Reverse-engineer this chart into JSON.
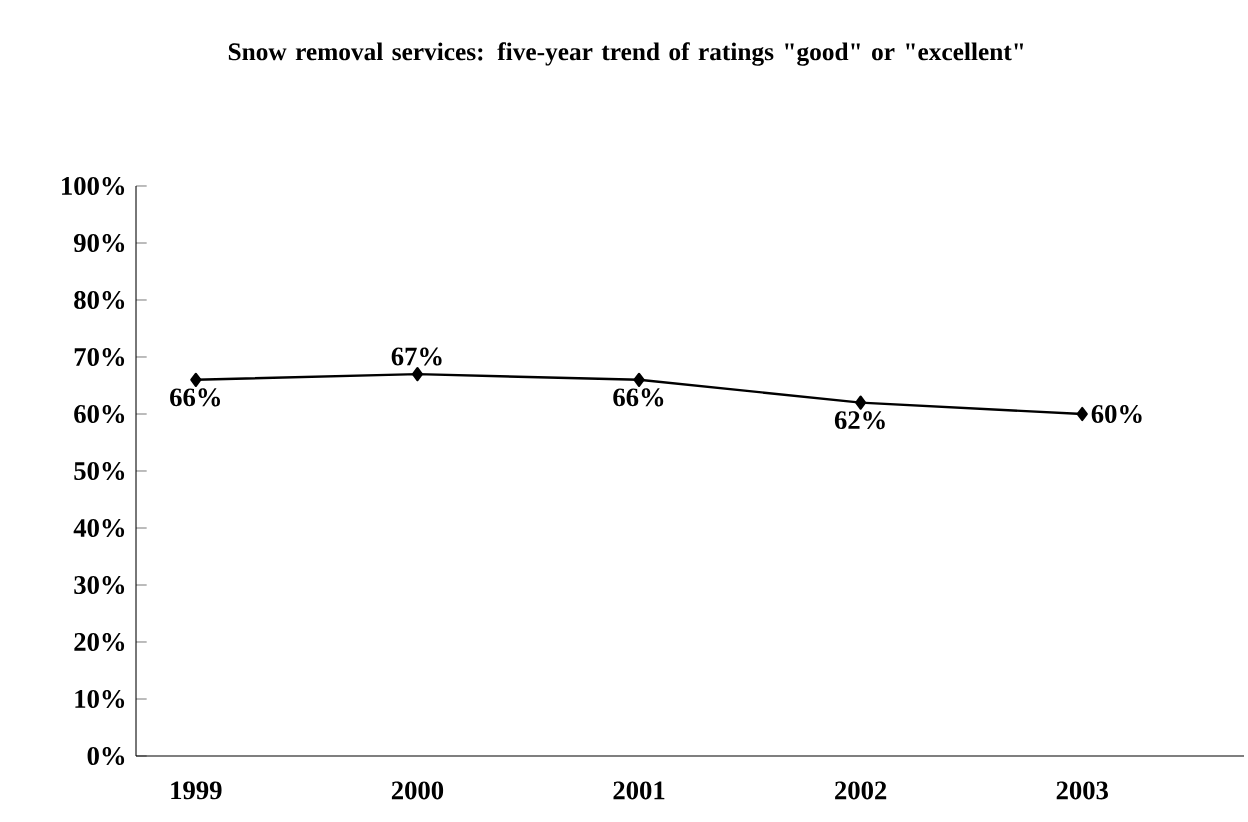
{
  "chart_data": {
    "type": "line",
    "title": "Snow removal services: five-year trend of ratings \"good\" or \"excellent\"",
    "categories": [
      "1999",
      "2000",
      "2001",
      "2002",
      "2003"
    ],
    "series": [
      {
        "color": "#000000",
        "values": [
          66,
          67,
          66,
          62,
          60
        ],
        "value_labels": [
          "66%",
          "67%",
          "66%",
          "62%",
          "60%"
        ]
      }
    ],
    "ylim": [
      0,
      100
    ],
    "yticks": [
      {
        "value": 0,
        "label": "0%"
      },
      {
        "value": 10,
        "label": "10%"
      },
      {
        "value": 20,
        "label": "20%"
      },
      {
        "value": 30,
        "label": "30%"
      },
      {
        "value": 40,
        "label": "40%"
      },
      {
        "value": 50,
        "label": "50%"
      },
      {
        "value": 60,
        "label": "60%"
      },
      {
        "value": 70,
        "label": "70%"
      },
      {
        "value": 80,
        "label": "80%"
      },
      {
        "value": 90,
        "label": "90%"
      },
      {
        "value": 100,
        "label": "100%"
      }
    ],
    "marker": "diamond",
    "line_style": "solid"
  }
}
